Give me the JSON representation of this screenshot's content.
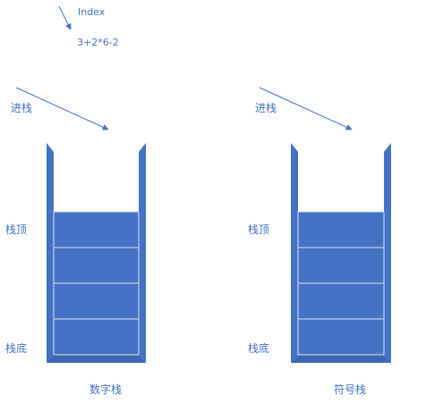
{
  "index_label": "Index",
  "expression": "3+2*6-2",
  "left_stack": {
    "push_label": "进栈",
    "top_label": "栈顶",
    "bottom_label": "栈底",
    "name": "数字栈",
    "slots": 4
  },
  "right_stack": {
    "push_label": "进栈",
    "top_label": "栈顶",
    "bottom_label": "栈底",
    "name": "符号栈",
    "slots": 4
  },
  "colors": {
    "accent": "#4472C4",
    "stack_fill": "#4472C4",
    "stack_wall_dark": "#2F5597",
    "slot_line": "#DCE3F2",
    "text": "#4472C4"
  }
}
